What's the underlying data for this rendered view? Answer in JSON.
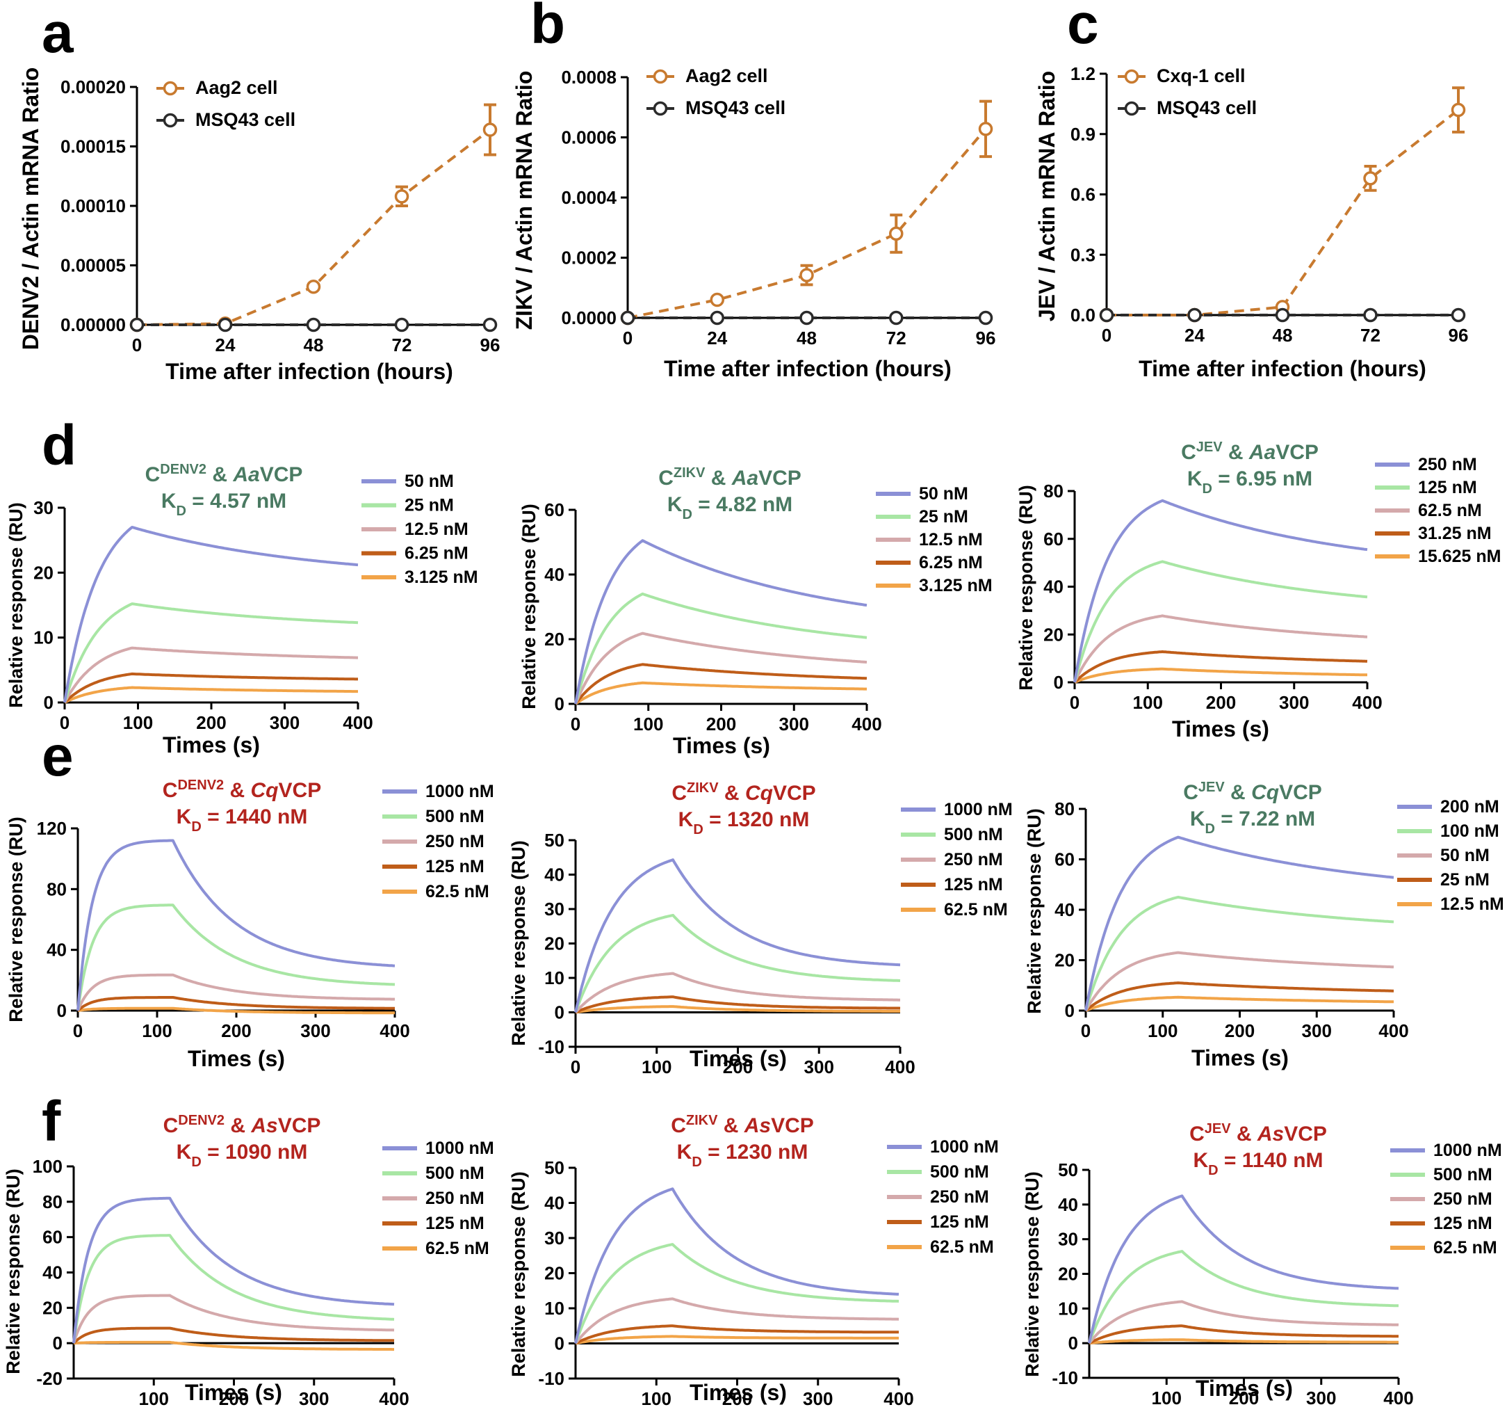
{
  "colors": {
    "orange": "#c87a2f",
    "dark": "#2b2b2b",
    "green_title": "#4a7a62",
    "red_title": "#b3241e",
    "c1": "#8b90d6",
    "c2": "#a8e6a4",
    "c3": "#d4a9ab",
    "c4": "#bf5d19",
    "c5": "#f2a448"
  },
  "chart_data": [
    {
      "panel": "a",
      "type": "line",
      "x": [
        0,
        24,
        48,
        72,
        96
      ],
      "xlabel": "Time after infection (hours)",
      "ylabel": "DENV2 / Actin mRNA Ratio",
      "xlim": [
        0,
        96
      ],
      "ylim": [
        0,
        0.0002
      ],
      "xticks": [
        "0",
        "24",
        "48",
        "72",
        "96"
      ],
      "yticks": [
        "0.00000",
        "0.00005",
        "0.00010",
        "0.00015",
        "0.00020"
      ],
      "series": [
        {
          "name": "Aag2 cell",
          "values": [
            0,
            1e-06,
            3.2e-05,
            0.000108,
            0.000164
          ],
          "errors": [
            0,
            1e-06,
            2e-06,
            8e-06,
            2.1e-05
          ]
        },
        {
          "name": "MSQ43 cell",
          "values": [
            0,
            0,
            0,
            0,
            0
          ],
          "errors": [
            0,
            0,
            0,
            0,
            0
          ]
        }
      ]
    },
    {
      "panel": "b",
      "type": "line",
      "x": [
        0,
        24,
        48,
        72,
        96
      ],
      "xlabel": "Time after infection (hours)",
      "ylabel": "ZIKV / Actin mRNA Ratio",
      "xlim": [
        0,
        96
      ],
      "ylim": [
        0,
        0.0008
      ],
      "xticks": [
        "0",
        "24",
        "48",
        "72",
        "96"
      ],
      "yticks": [
        "0.0000",
        "0.0002",
        "0.0004",
        "0.0006",
        "0.0008"
      ],
      "series": [
        {
          "name": "Aag2 cell",
          "values": [
            0,
            6e-05,
            0.000142,
            0.00028,
            0.000628
          ],
          "errors": [
            0,
            5e-06,
            3.2e-05,
            6.2e-05,
            9.2e-05
          ]
        },
        {
          "name": "MSQ43 cell",
          "values": [
            0,
            0,
            0,
            0,
            0
          ],
          "errors": [
            0,
            0,
            0,
            0,
            0
          ]
        }
      ]
    },
    {
      "panel": "c",
      "type": "line",
      "x": [
        0,
        24,
        48,
        72,
        96
      ],
      "xlabel": "Time after infection (hours)",
      "ylabel": "JEV / Actin mRNA Ratio",
      "xlim": [
        0,
        96
      ],
      "ylim": [
        0,
        1.2
      ],
      "xticks": [
        "0",
        "24",
        "48",
        "72",
        "96"
      ],
      "yticks": [
        "0.0",
        "0.3",
        "0.6",
        "0.9",
        "1.2"
      ],
      "series": [
        {
          "name": "Cxq-1 cell",
          "values": [
            0,
            0,
            0.04,
            0.68,
            1.02
          ],
          "errors": [
            0,
            0,
            0.01,
            0.06,
            0.11
          ]
        },
        {
          "name": "MSQ43 cell",
          "values": [
            0,
            0,
            0,
            0,
            0
          ],
          "errors": [
            0,
            0,
            0,
            0,
            0
          ]
        }
      ]
    },
    {
      "panel": "d",
      "type": "line",
      "title_pre": "C",
      "title_sup": "DENV2",
      "title_mid": " & ",
      "title_it": "Aa",
      "title_post": "VCP",
      "kd_pre": "K",
      "kd_sub": "D",
      "kd_post": " = 4.57 nM",
      "xlabel": "Times (s)",
      "ylabel": "Relative response (RU)",
      "xlim": [
        0,
        400
      ],
      "ylim": [
        0,
        30
      ],
      "xticks": [
        "0",
        "100",
        "200",
        "300",
        "400"
      ],
      "yticks": [
        "0",
        "10",
        "20",
        "30"
      ],
      "series": [
        {
          "name": "50 nM",
          "peak": 27,
          "end": 21.2
        },
        {
          "name": "25 nM",
          "peak": 15.2,
          "end": 12.3
        },
        {
          "name": "12.5 nM",
          "peak": 8.4,
          "end": 6.9
        },
        {
          "name": "6.25 nM",
          "peak": 4.4,
          "end": 3.6
        },
        {
          "name": "3.125 nM",
          "peak": 2.3,
          "end": 1.7
        }
      ]
    },
    {
      "panel": "d",
      "type": "line",
      "title_pre": "C",
      "title_sup": "ZIKV",
      "title_mid": " & ",
      "title_it": "Aa",
      "title_post": "VCP",
      "kd_pre": "K",
      "kd_sub": "D",
      "kd_post": " = 4.82 nM",
      "xlabel": "Times (s)",
      "ylabel": "Relative response (RU)",
      "xlim": [
        0,
        400
      ],
      "ylim": [
        0,
        60
      ],
      "xticks": [
        "0",
        "100",
        "200",
        "300",
        "400"
      ],
      "yticks": [
        "0",
        "20",
        "40",
        "60"
      ],
      "series": [
        {
          "name": "50 nM",
          "peak": 50.5,
          "end": 30.5
        },
        {
          "name": "25 nM",
          "peak": 34,
          "end": 20.5
        },
        {
          "name": "12.5 nM",
          "peak": 21.8,
          "end": 12.9
        },
        {
          "name": "6.25 nM",
          "peak": 12.2,
          "end": 7.9
        },
        {
          "name": "3.125 nM",
          "peak": 6.5,
          "end": 4.6
        }
      ]
    },
    {
      "panel": "d",
      "type": "line",
      "title_pre": "C",
      "title_sup": "JEV",
      "title_mid": " & ",
      "title_it": "Aa",
      "title_post": "VCP",
      "kd_pre": "K",
      "kd_sub": "D",
      "kd_post": " = 6.95 nM",
      "xlabel": "Times (s)",
      "ylabel": "Relative response (RU)",
      "xlim": [
        0,
        400
      ],
      "ylim": [
        0,
        80
      ],
      "xticks": [
        "0",
        "100",
        "200",
        "300",
        "400"
      ],
      "yticks": [
        "0",
        "20",
        "40",
        "60",
        "80"
      ],
      "series": [
        {
          "name": "250 nM",
          "peak": 76,
          "end": 55.5
        },
        {
          "name": "125 nM",
          "peak": 50.5,
          "end": 35.7
        },
        {
          "name": "62.5 nM",
          "peak": 27.8,
          "end": 19
        },
        {
          "name": "31.25 nM",
          "peak": 12.8,
          "end": 8.8
        },
        {
          "name": "15.625 nM",
          "peak": 5.6,
          "end": 3.1
        }
      ]
    },
    {
      "panel": "e",
      "type": "line",
      "title_pre": "C",
      "title_sup": "DENV2",
      "title_mid": " & ",
      "title_it": "Cq",
      "title_post": "VCP",
      "kd_pre": "K",
      "kd_sub": "D",
      "kd_post": " = 1440 nM",
      "xlabel": "Times (s)",
      "ylabel": "Relative response (RU)",
      "xlim": [
        0,
        400
      ],
      "ylim": [
        0,
        120
      ],
      "xticks": [
        "0",
        "100",
        "200",
        "300",
        "400"
      ],
      "yticks": [
        "0",
        "40",
        "80",
        "120"
      ],
      "series": [
        {
          "name": "1000 nM",
          "peak": 112,
          "end": 29.5
        },
        {
          "name": "500 nM",
          "peak": 69.5,
          "end": 17.2
        },
        {
          "name": "250 nM",
          "peak": 23.5,
          "end": 7.5
        },
        {
          "name": "125 nM",
          "peak": 8.7,
          "end": 1.5
        },
        {
          "name": "62.5 nM",
          "peak": 1.5,
          "end": -1.5
        }
      ]
    },
    {
      "panel": "e",
      "type": "line",
      "title_pre": "C",
      "title_sup": "ZIKV",
      "title_mid": " & ",
      "title_it": "Cq",
      "title_post": "VCP",
      "kd_pre": "K",
      "kd_sub": "D",
      "kd_post": " = 1320 nM",
      "xlabel": "Times (s)",
      "ylabel": "Relative response (RU)",
      "xlim": [
        0,
        400
      ],
      "ylim": [
        -10,
        50
      ],
      "xticks": [
        "0",
        "100",
        "200",
        "300",
        "400"
      ],
      "yticks": [
        "-10",
        "0",
        "10",
        "20",
        "30",
        "40",
        "50"
      ],
      "series": [
        {
          "name": "1000 nM",
          "peak": 44.3,
          "end": 13.8
        },
        {
          "name": "500 nM",
          "peak": 28.2,
          "end": 9.2
        },
        {
          "name": "250 nM",
          "peak": 11.3,
          "end": 3.6
        },
        {
          "name": "125 nM",
          "peak": 4.5,
          "end": 1.2
        },
        {
          "name": "62.5 nM",
          "peak": 1.7,
          "end": 0.3
        }
      ]
    },
    {
      "panel": "e",
      "type": "line",
      "title_pre": "C",
      "title_sup": "JEV",
      "title_mid": " & ",
      "title_it": "Cq",
      "title_post": "VCP",
      "kd_pre": "K",
      "kd_sub": "D",
      "kd_post": " = 7.22 nM",
      "xlabel": "Times (s)",
      "ylabel": "Relative response (RU)",
      "xlim": [
        0,
        400
      ],
      "ylim": [
        0,
        80
      ],
      "xticks": [
        "0",
        "100",
        "200",
        "300",
        "400"
      ],
      "yticks": [
        "0",
        "20",
        "40",
        "60",
        "80"
      ],
      "series": [
        {
          "name": "200 nM",
          "peak": 68.8,
          "end": 52.8
        },
        {
          "name": "100 nM",
          "peak": 45,
          "end": 35.2
        },
        {
          "name": "50 nM",
          "peak": 23,
          "end": 17.3
        },
        {
          "name": "25 nM",
          "peak": 11,
          "end": 7.8
        },
        {
          "name": "12.5 nM",
          "peak": 5.3,
          "end": 3.5
        }
      ]
    },
    {
      "panel": "f",
      "type": "line",
      "title_pre": "C",
      "title_sup": "DENV2",
      "title_mid": " & ",
      "title_it": "As",
      "title_post": "VCP",
      "kd_pre": "K",
      "kd_sub": "D",
      "kd_post": " = 1090 nM",
      "xlabel": "Times (s)",
      "ylabel": "Relative response (RU)",
      "xlim": [
        0,
        400
      ],
      "ylim": [
        -20,
        100
      ],
      "xticks": [
        "100",
        "200",
        "300",
        "400"
      ],
      "yticks": [
        "-20",
        "0",
        "20",
        "40",
        "60",
        "80",
        "100"
      ],
      "series": [
        {
          "name": "1000 nM",
          "peak": 82,
          "end": 22
        },
        {
          "name": "500 nM",
          "peak": 61,
          "end": 13.5
        },
        {
          "name": "250 nM",
          "peak": 27,
          "end": 7.4
        },
        {
          "name": "125 nM",
          "peak": 8.5,
          "end": 1.5
        },
        {
          "name": "62.5 nM",
          "peak": 0.5,
          "end": -3.5
        }
      ]
    },
    {
      "panel": "f",
      "type": "line",
      "title_pre": "C",
      "title_sup": "ZIKV",
      "title_mid": " & ",
      "title_it": "As",
      "title_post": "VCP",
      "kd_pre": "K",
      "kd_sub": "D",
      "kd_post": " = 1230 nM",
      "xlabel": "Times (s)",
      "ylabel": "Relative response (RU)",
      "xlim": [
        0,
        400
      ],
      "ylim": [
        -10,
        50
      ],
      "xticks": [
        "100",
        "200",
        "300",
        "400"
      ],
      "yticks": [
        "-10",
        "0",
        "10",
        "20",
        "30",
        "40",
        "50"
      ],
      "series": [
        {
          "name": "1000 nM",
          "peak": 44,
          "end": 14
        },
        {
          "name": "500 nM",
          "peak": 28.2,
          "end": 12
        },
        {
          "name": "250 nM",
          "peak": 12.7,
          "end": 6.9
        },
        {
          "name": "125 nM",
          "peak": 5,
          "end": 3.2
        },
        {
          "name": "62.5 nM",
          "peak": 2,
          "end": 1.5
        }
      ]
    },
    {
      "panel": "f",
      "type": "line",
      "title_pre": "C",
      "title_sup": "JEV",
      "title_mid": " & ",
      "title_it": "As",
      "title_post": "VCP",
      "kd_pre": "K",
      "kd_sub": "D",
      "kd_post": " = 1140 nM",
      "xlabel": "Times (s)",
      "ylabel": "Relative response (RU)",
      "xlim": [
        0,
        400
      ],
      "ylim": [
        -10,
        50
      ],
      "xticks": [
        "100",
        "200",
        "300",
        "400"
      ],
      "yticks": [
        "-10",
        "0",
        "10",
        "20",
        "30",
        "40",
        "50"
      ],
      "series": [
        {
          "name": "1000 nM",
          "peak": 42.5,
          "end": 15.8
        },
        {
          "name": "500 nM",
          "peak": 26.5,
          "end": 10.8
        },
        {
          "name": "250 nM",
          "peak": 12,
          "end": 5.3
        },
        {
          "name": "125 nM",
          "peak": 5,
          "end": 2
        },
        {
          "name": "62.5 nM",
          "peak": 1,
          "end": 0.3
        }
      ]
    }
  ]
}
